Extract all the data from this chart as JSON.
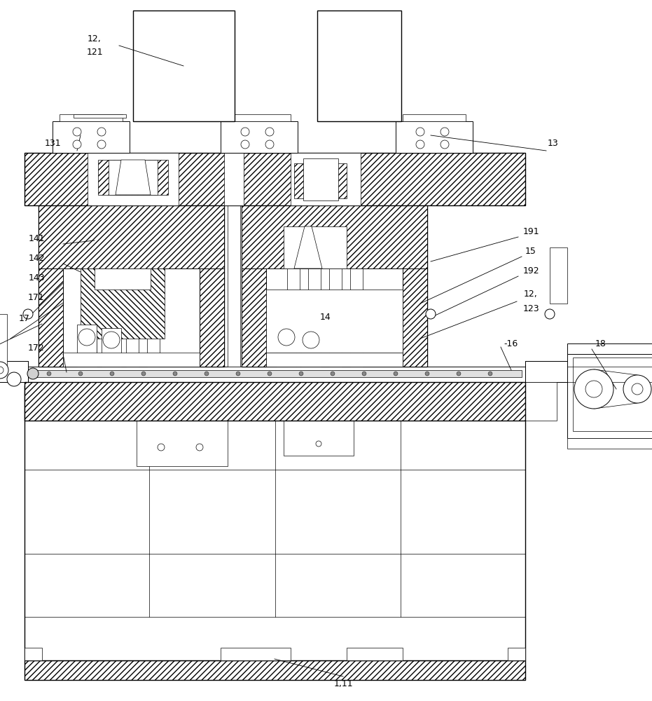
{
  "bg_color": "#ffffff",
  "line_color": "#000000",
  "figsize": [
    9.31,
    10.0
  ],
  "dpi": 100,
  "labels": {
    "12_121": "12,\n121",
    "131": "131",
    "13": "13",
    "141": "141",
    "142": "142",
    "143": "143",
    "171": "171",
    "17": "17",
    "172": "172",
    "191": "191",
    "15": "15",
    "192": "192",
    "12_123": "12,\n123",
    "16": "-16",
    "18": "18",
    "14": "14",
    "1_11": "1,11"
  }
}
